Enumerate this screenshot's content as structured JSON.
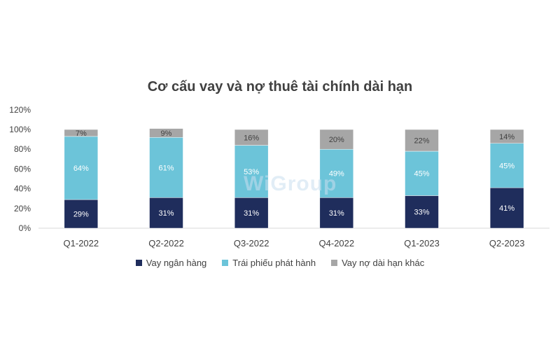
{
  "colors": {
    "vay_ngan_hang": "#1f2d5c",
    "trai_phieu": "#6cc4d9",
    "vay_no_khac": "#a6a6a6",
    "grid": "#d9d9d9",
    "text": "#404040"
  },
  "watermark": "WiGroup",
  "chart_data": {
    "type": "bar",
    "stacked": true,
    "title": "Cơ cấu vay và nợ thuê tài chính dài hạn",
    "categories": [
      "Q1-2022",
      "Q2-2022",
      "Q3-2022",
      "Q4-2022",
      "Q1-2023",
      "Q2-2023"
    ],
    "y_ticks": [
      "0%",
      "20%",
      "40%",
      "60%",
      "80%",
      "100%",
      "120%"
    ],
    "ylim": [
      0,
      120
    ],
    "legend_position": "bottom",
    "series": [
      {
        "name": "Vay ngân hàng",
        "values": [
          29,
          31,
          31,
          31,
          33,
          41
        ],
        "labels": [
          "29%",
          "31%",
          "31%",
          "31%",
          "33%",
          "41%"
        ]
      },
      {
        "name": "Trái phiếu phát hành",
        "values": [
          64,
          61,
          53,
          49,
          45,
          45
        ],
        "labels": [
          "64%",
          "61%",
          "53%",
          "49%",
          "45%",
          "45%"
        ]
      },
      {
        "name": "Vay nợ dài hạn khác",
        "values": [
          7,
          9,
          16,
          20,
          22,
          14
        ],
        "labels": [
          "7%",
          "9%",
          "16%",
          "20%",
          "22%",
          "14%"
        ]
      }
    ]
  }
}
